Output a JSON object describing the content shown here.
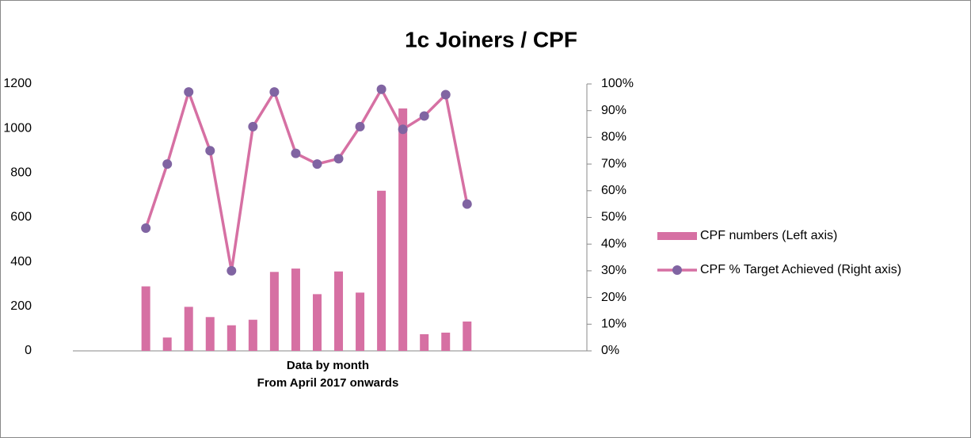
{
  "chart_data": {
    "type": "bar_line",
    "title": "1c Joiners / CPF",
    "xlabel": [
      "Data by month",
      "From April 2017 onwards"
    ],
    "categories": [
      null,
      null,
      null,
      null,
      null,
      null,
      null,
      null,
      null,
      null,
      null,
      null,
      null,
      null,
      null,
      null,
      null,
      null,
      null,
      null,
      null,
      null,
      null,
      null
    ],
    "series": [
      {
        "name": "CPF numbers (Left axis)",
        "color": "#d670a3",
        "axis": "y",
        "kind": "bar",
        "values": [
          null,
          null,
          null,
          290,
          60,
          198,
          152,
          115,
          140,
          355,
          370,
          255,
          357,
          262,
          720,
          1090,
          75,
          82,
          132,
          null,
          null,
          null,
          null,
          null
        ]
      },
      {
        "name": "CPF % Target Achieved (Right axis)",
        "color": "#d670a3",
        "marker_color": "#8064a2",
        "axis": "y2",
        "kind": "line",
        "values": [
          null,
          null,
          null,
          46,
          70,
          97,
          75,
          30,
          84,
          97,
          74,
          70,
          72,
          84,
          98,
          83,
          88,
          96,
          55,
          null,
          null,
          null,
          null,
          null
        ]
      }
    ],
    "ylim": [
      0,
      1200
    ],
    "yticks": [
      0,
      200,
      400,
      600,
      800,
      1000,
      1200
    ],
    "y2lim": [
      0,
      100
    ],
    "y2ticks": [
      {
        "value": 0,
        "label": "0%"
      },
      {
        "value": 10,
        "label": "10%"
      },
      {
        "value": 20,
        "label": "20%"
      },
      {
        "value": 30,
        "label": "30%"
      },
      {
        "value": 40,
        "label": "40%"
      },
      {
        "value": 50,
        "label": "50%"
      },
      {
        "value": 60,
        "label": "60%"
      },
      {
        "value": 70,
        "label": "70%"
      },
      {
        "value": 80,
        "label": "80%"
      },
      {
        "value": 90,
        "label": "90%"
      },
      {
        "value": 100,
        "label": "100%"
      }
    ],
    "legend": "right"
  }
}
